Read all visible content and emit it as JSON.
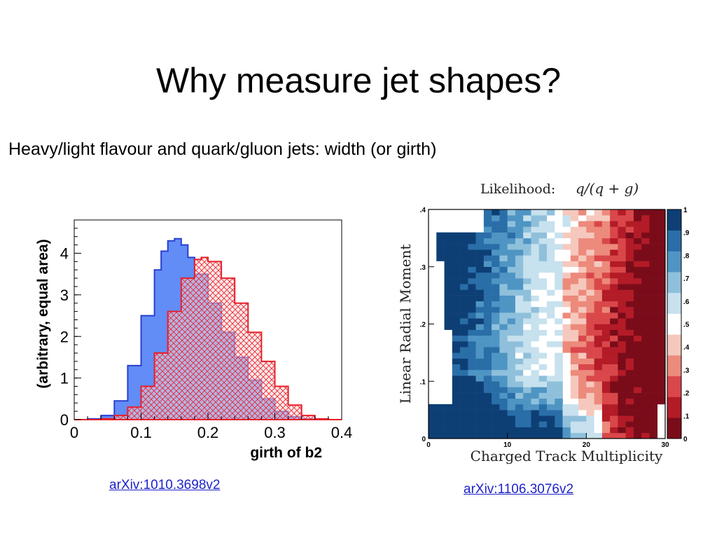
{
  "slide": {
    "title": "Why measure jet shapes?",
    "subtitle": "Heavy/light flavour and quark/gluon jets: width (or girth)",
    "links": [
      "arXiv:1010.3698v2",
      "arXiv:1106.3076v2"
    ]
  },
  "chart_data": [
    {
      "type": "area",
      "title": "",
      "xlabel": "girth of b2",
      "ylabel": "(arbitrary, equal area)",
      "xlim": [
        0,
        0.4
      ],
      "ylim": [
        0,
        4.8
      ],
      "xticks": [
        "0",
        "0.1",
        "0.2",
        "0.3",
        "0.4"
      ],
      "yticks": [
        "0",
        "1",
        "2",
        "3",
        "4"
      ],
      "grid": false,
      "legend": "none",
      "series": [
        {
          "fill": "#5a86f5",
          "stroke": "#2a3fcf",
          "pattern": "solid",
          "x": [
            0.0,
            0.02,
            0.04,
            0.06,
            0.08,
            0.1,
            0.12,
            0.13,
            0.14,
            0.15,
            0.16,
            0.17,
            0.18,
            0.2,
            0.22,
            0.24,
            0.26,
            0.28,
            0.3,
            0.32,
            0.34,
            0.36,
            0.38,
            0.4
          ],
          "values": [
            0.0,
            0.02,
            0.1,
            0.45,
            1.3,
            2.5,
            3.6,
            4.05,
            4.3,
            4.35,
            4.2,
            3.9,
            3.5,
            2.8,
            2.1,
            1.5,
            0.95,
            0.5,
            0.2,
            0.07,
            0.02,
            0.0,
            0.0,
            0.0
          ]
        },
        {
          "fill": "#f7c9c9",
          "stroke": "#e8202a",
          "pattern": "hatched",
          "x": [
            0.0,
            0.02,
            0.04,
            0.06,
            0.08,
            0.1,
            0.12,
            0.14,
            0.16,
            0.18,
            0.19,
            0.2,
            0.22,
            0.24,
            0.26,
            0.28,
            0.3,
            0.32,
            0.34,
            0.36,
            0.38,
            0.4
          ],
          "values": [
            0.0,
            0.0,
            0.02,
            0.1,
            0.3,
            0.8,
            1.6,
            2.6,
            3.4,
            3.85,
            3.9,
            3.8,
            3.4,
            2.8,
            2.1,
            1.4,
            0.8,
            0.35,
            0.1,
            0.02,
            0.0,
            0.0
          ]
        }
      ]
    },
    {
      "type": "heatmap",
      "title": "Likelihood:",
      "title_formula": "q/(q + g)",
      "xlabel": "Charged Track Multiplicity",
      "ylabel": "Linear Radial Moment",
      "xlim": [
        0,
        30
      ],
      "ylim": [
        0,
        0.4
      ],
      "xticks": [
        "0",
        "10",
        "20",
        "30"
      ],
      "yticks": [
        ".1",
        ".2",
        ".3",
        ".4"
      ],
      "colorbar": {
        "range": [
          0,
          1
        ],
        "ticks": [
          "0",
          ".1",
          ".2",
          ".3",
          ".4",
          ".5",
          ".6",
          ".7",
          ".8",
          ".9",
          "1"
        ],
        "colors": [
          "#7a0c1a",
          "#b31b27",
          "#d9474a",
          "#ec8a7c",
          "#f6c8bd",
          "#ffffff",
          "#c7e1ee",
          "#8fc0db",
          "#4f95c4",
          "#2a6ea8",
          "#0d3f75"
        ]
      }
    }
  ]
}
